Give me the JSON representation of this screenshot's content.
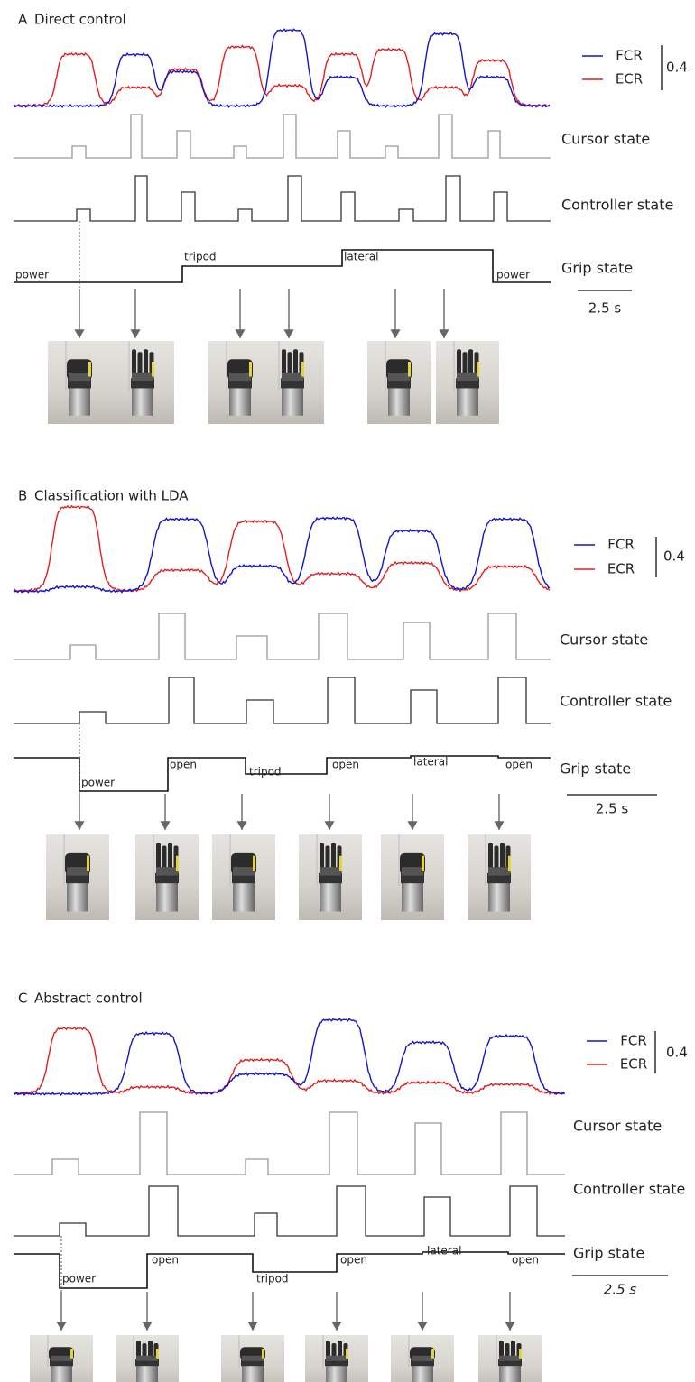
{
  "panels": [
    {
      "label": "A",
      "title": "Direct control",
      "legend": [
        "FCR",
        "ECR"
      ],
      "scale": "0.4",
      "rows": [
        "Cursor state",
        "Controller state",
        "Grip state"
      ],
      "grips": [
        "power",
        "tripod",
        "lateral",
        "power"
      ],
      "time_scale": "2.5 s"
    },
    {
      "label": "B",
      "title": "Classification with LDA",
      "legend": [
        "FCR",
        "ECR"
      ],
      "scale": "0.4",
      "rows": [
        "Cursor state",
        "Controller state",
        "Grip state"
      ],
      "grips": [
        "power",
        "open",
        "tripod",
        "open",
        "lateral",
        "open"
      ],
      "time_scale": "2.5 s"
    },
    {
      "label": "C",
      "title": "Abstract control",
      "legend": [
        "FCR",
        "ECR"
      ],
      "scale": "0.4",
      "rows": [
        "Cursor state",
        "Controller state",
        "Grip state"
      ],
      "grips": [
        "power",
        "open",
        "tripod",
        "open",
        "lateral",
        "open"
      ],
      "time_scale": "2.5 s"
    }
  ]
}
